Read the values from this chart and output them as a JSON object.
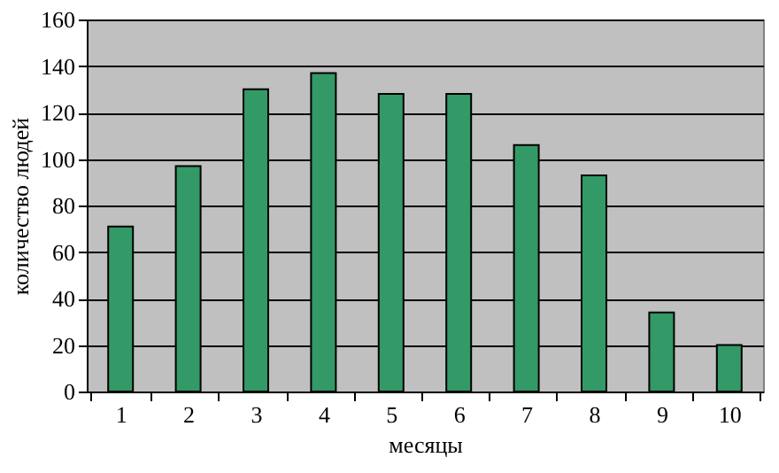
{
  "chart_data": {
    "type": "bar",
    "xlabel": "месяцы",
    "ylabel": "количество людей",
    "categories": [
      "1",
      "2",
      "3",
      "4",
      "5",
      "6",
      "7",
      "8",
      "9",
      "10"
    ],
    "values": [
      71,
      97,
      130,
      137,
      128,
      128,
      106,
      93,
      34,
      20
    ],
    "color": "#339966",
    "ylim": [
      0,
      160
    ],
    "yticks": [
      0,
      20,
      40,
      60,
      80,
      100,
      120,
      140,
      160
    ],
    "grid": "y"
  }
}
